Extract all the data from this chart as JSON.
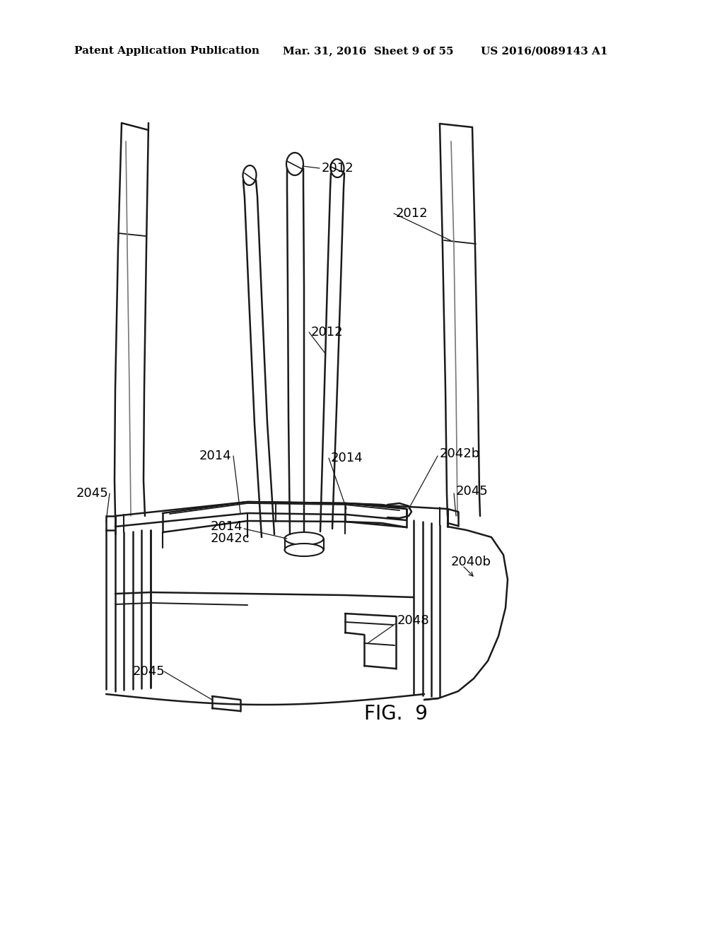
{
  "background_color": "#ffffff",
  "title_left": "Patent Application Publication",
  "title_center": "Mar. 31, 2016  Sheet 9 of 55",
  "title_right": "US 2016/0089143 A1",
  "fig_label": "FIG.  9",
  "line_color": "#1a1a1a",
  "label_color": "#000000",
  "line_width": 1.8
}
